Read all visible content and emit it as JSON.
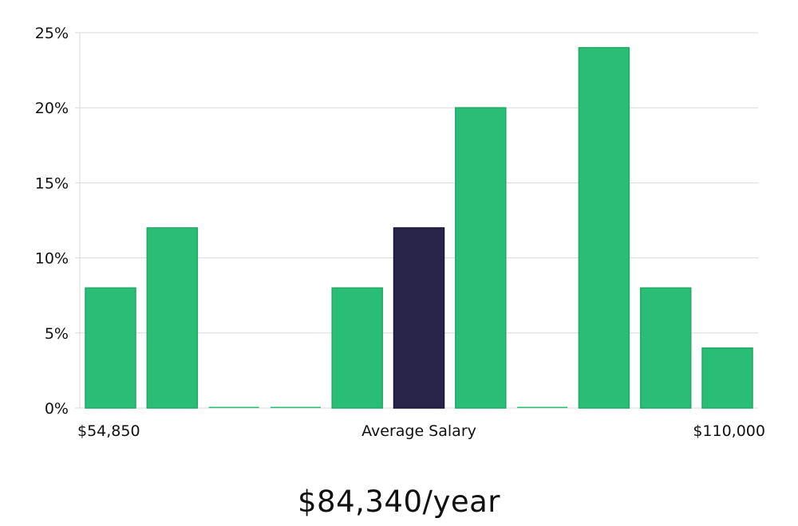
{
  "chart_data": {
    "type": "bar",
    "categories": [
      "1",
      "2",
      "3",
      "4",
      "5",
      "6",
      "7",
      "8",
      "9",
      "10",
      "11"
    ],
    "values": [
      8,
      12,
      0,
      0,
      8,
      12,
      20,
      0,
      24,
      8,
      4
    ],
    "highlight_index": 5,
    "ylim": [
      0,
      25
    ],
    "y_ticks": [
      0,
      5,
      10,
      15,
      20,
      25
    ],
    "y_tick_suffix": "%",
    "grid": true,
    "x_labels": {
      "left": "$54,850",
      "center": "Average Salary",
      "right": "$110,000"
    },
    "colors": {
      "bar": "#2abd76",
      "highlight": "#28244a",
      "grid": "#d9d9d9"
    }
  },
  "summary": {
    "average_salary": "$84,340/year"
  }
}
